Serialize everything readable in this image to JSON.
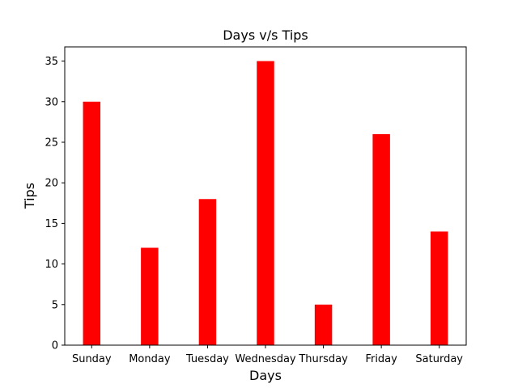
{
  "chart_data": {
    "type": "bar",
    "title": "Days v/s Tips",
    "xlabel": "Days",
    "ylabel": "Tips",
    "categories": [
      "Sunday",
      "Monday",
      "Tuesday",
      "Wednesday",
      "Thursday",
      "Friday",
      "Saturday"
    ],
    "values": [
      30,
      12,
      18,
      35,
      5,
      26,
      14
    ],
    "ylim": [
      0,
      36.75
    ],
    "yticks": [
      0,
      5,
      10,
      15,
      20,
      25,
      30,
      35
    ],
    "bar_color": "#ff0000",
    "grid": false,
    "legend": "none"
  }
}
